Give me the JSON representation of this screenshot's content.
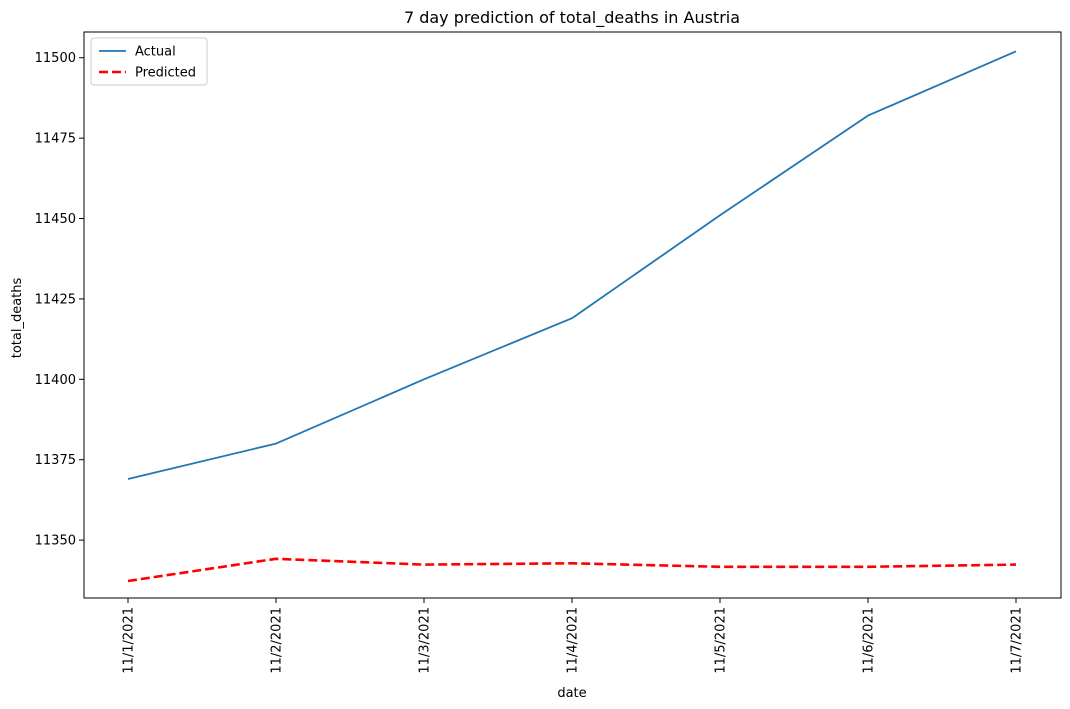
{
  "chart_data": {
    "type": "line",
    "title": "7 day prediction of total_deaths in Austria",
    "xlabel": "date",
    "ylabel": "total_deaths",
    "categories": [
      "11/1/2021",
      "11/2/2021",
      "11/3/2021",
      "11/4/2021",
      "11/5/2021",
      "11/6/2021",
      "11/7/2021"
    ],
    "yticks": [
      "11350",
      "11375",
      "11400",
      "11425",
      "11450",
      "11475",
      "11500"
    ],
    "ylim": [
      11332,
      11508
    ],
    "legend_position": "upper-left",
    "grid": false,
    "series": [
      {
        "name": "Actual",
        "color": "#1f77b4",
        "style": "solid",
        "values": [
          11369,
          11380,
          11400,
          11419,
          11451,
          11482,
          11502
        ]
      },
      {
        "name": "Predicted",
        "color": "#ff0000",
        "style": "dashed",
        "values": [
          11337.3,
          11344.2,
          11342.4,
          11342.8,
          11341.7,
          11341.7,
          11342.4
        ]
      }
    ]
  }
}
